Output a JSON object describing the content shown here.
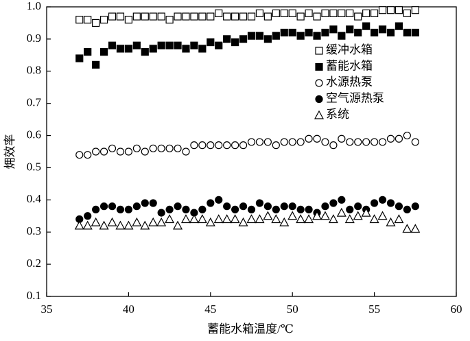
{
  "chart_data": {
    "type": "scatter",
    "xlabel": "蓄能水箱温度/℃",
    "ylabel": "㶲效率",
    "x": [
      37,
      37.5,
      38,
      38.5,
      39,
      39.5,
      40,
      40.5,
      41,
      41.5,
      42,
      42.5,
      43,
      43.5,
      44,
      44.5,
      45,
      45.5,
      46,
      46.5,
      47,
      47.5,
      48,
      48.5,
      49,
      49.5,
      50,
      50.5,
      51,
      51.5,
      52,
      52.5,
      53,
      53.5,
      54,
      54.5,
      55,
      55.5,
      56,
      56.5,
      57,
      57.5
    ],
    "series": [
      {
        "name": "缓冲水箱",
        "color": "#000000",
        "marker": "square-open",
        "values": [
          0.96,
          0.96,
          0.95,
          0.96,
          0.97,
          0.97,
          0.96,
          0.97,
          0.97,
          0.97,
          0.97,
          0.96,
          0.97,
          0.97,
          0.97,
          0.97,
          0.97,
          0.98,
          0.97,
          0.97,
          0.97,
          0.97,
          0.98,
          0.97,
          0.98,
          0.98,
          0.98,
          0.97,
          0.98,
          0.97,
          0.98,
          0.98,
          0.98,
          0.98,
          0.97,
          0.98,
          0.98,
          0.99,
          0.99,
          0.99,
          0.98,
          0.99
        ]
      },
      {
        "name": "蓄能水箱",
        "color": "#000000",
        "marker": "square-filled",
        "values": [
          0.84,
          0.86,
          0.82,
          0.86,
          0.88,
          0.87,
          0.87,
          0.88,
          0.86,
          0.87,
          0.88,
          0.88,
          0.88,
          0.87,
          0.88,
          0.87,
          0.89,
          0.88,
          0.9,
          0.89,
          0.9,
          0.91,
          0.91,
          0.9,
          0.91,
          0.92,
          0.92,
          0.91,
          0.92,
          0.91,
          0.92,
          0.93,
          0.91,
          0.93,
          0.92,
          0.94,
          0.92,
          0.93,
          0.92,
          0.94,
          0.92,
          0.92
        ]
      },
      {
        "name": "水源热泵",
        "color": "#000000",
        "marker": "circle-open",
        "values": [
          0.54,
          0.54,
          0.55,
          0.55,
          0.56,
          0.55,
          0.55,
          0.56,
          0.55,
          0.56,
          0.56,
          0.56,
          0.56,
          0.55,
          0.57,
          0.57,
          0.57,
          0.57,
          0.57,
          0.57,
          0.57,
          0.58,
          0.58,
          0.58,
          0.57,
          0.58,
          0.58,
          0.58,
          0.59,
          0.59,
          0.58,
          0.57,
          0.59,
          0.58,
          0.58,
          0.58,
          0.58,
          0.58,
          0.59,
          0.59,
          0.6,
          0.58
        ]
      },
      {
        "name": "空气源热泵",
        "color": "#000000",
        "marker": "circle-filled",
        "values": [
          0.34,
          0.35,
          0.37,
          0.38,
          0.38,
          0.37,
          0.37,
          0.38,
          0.39,
          0.39,
          0.36,
          0.37,
          0.38,
          0.37,
          0.36,
          0.37,
          0.39,
          0.4,
          0.38,
          0.37,
          0.38,
          0.37,
          0.39,
          0.38,
          0.37,
          0.38,
          0.38,
          0.37,
          0.37,
          0.36,
          0.38,
          0.39,
          0.4,
          0.37,
          0.38,
          0.37,
          0.39,
          0.4,
          0.39,
          0.38,
          0.37,
          0.38
        ]
      },
      {
        "name": "系统",
        "color": "#000000",
        "marker": "triangle-open",
        "values": [
          0.32,
          0.32,
          0.33,
          0.32,
          0.33,
          0.32,
          0.32,
          0.33,
          0.32,
          0.33,
          0.33,
          0.34,
          0.32,
          0.34,
          0.34,
          0.34,
          0.33,
          0.34,
          0.34,
          0.34,
          0.33,
          0.34,
          0.34,
          0.35,
          0.34,
          0.33,
          0.35,
          0.34,
          0.34,
          0.35,
          0.35,
          0.34,
          0.36,
          0.34,
          0.35,
          0.36,
          0.34,
          0.35,
          0.33,
          0.34,
          0.31,
          0.31
        ]
      }
    ],
    "xlim": [
      35,
      60
    ],
    "xticks": [
      35,
      40,
      45,
      50,
      55,
      60
    ],
    "ylim": [
      0.1,
      1.0
    ],
    "yticks": [
      {
        "value": 0.1,
        "label": "0.1"
      },
      0.2,
      0.3,
      0.4,
      0.5,
      0.6,
      0.7,
      0.8,
      0.9,
      {
        "value": 1.0,
        "label": "1.0"
      }
    ],
    "grid": false,
    "legend": "upper right"
  }
}
